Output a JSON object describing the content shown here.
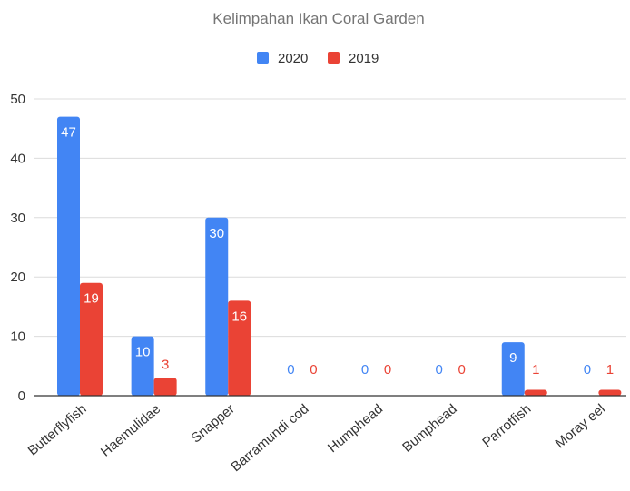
{
  "chart_data": {
    "type": "bar",
    "title": "Kelimpahan Ikan Coral Garden",
    "xlabel": "",
    "ylabel": "",
    "categories": [
      "Butterflyfish",
      "Haemulidae",
      "Snapper",
      "Barramundi cod",
      "Humphead",
      "Bumphead",
      "Parrotfish",
      "Moray eel"
    ],
    "series": [
      {
        "name": "2020",
        "color": "#4285f4",
        "values": [
          47,
          10,
          30,
          0,
          0,
          0,
          9,
          0
        ]
      },
      {
        "name": "2019",
        "color": "#ea4335",
        "values": [
          19,
          3,
          16,
          0,
          0,
          0,
          1,
          1
        ]
      }
    ],
    "ylim": [
      0,
      50
    ],
    "yticks": [
      0,
      10,
      20,
      30,
      40,
      50
    ],
    "grid": true,
    "legend_position": "top",
    "data_labels": true
  }
}
